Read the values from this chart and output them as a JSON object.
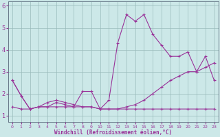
{
  "xlabel": "Windchill (Refroidissement éolien,°C)",
  "bg_color": "#cce8e8",
  "grid_color": "#99bbbb",
  "line_color": "#993399",
  "spine_color": "#667788",
  "series1": [
    2.6,
    1.9,
    1.3,
    1.4,
    1.4,
    1.6,
    1.5,
    1.4,
    2.1,
    2.1,
    1.3,
    1.7,
    4.3,
    5.6,
    5.3,
    5.6,
    4.7,
    4.2,
    3.7,
    3.7,
    3.9,
    3.0,
    3.7,
    2.6
  ],
  "series2": [
    2.6,
    1.9,
    1.3,
    1.4,
    1.6,
    1.7,
    1.6,
    1.5,
    1.4,
    1.4,
    1.3,
    1.3,
    1.3,
    1.4,
    1.5,
    1.7,
    2.0,
    2.3,
    2.6,
    2.8,
    3.0,
    3.0,
    3.2,
    3.4
  ],
  "series3": [
    1.4,
    1.3,
    1.3,
    1.4,
    1.4,
    1.4,
    1.4,
    1.4,
    1.4,
    1.4,
    1.3,
    1.3,
    1.3,
    1.3,
    1.3,
    1.3,
    1.3,
    1.3,
    1.3,
    1.3,
    1.3,
    1.3,
    1.3,
    1.3
  ],
  "x_hours": [
    0,
    1,
    2,
    3,
    4,
    5,
    6,
    7,
    8,
    9,
    10,
    11,
    12,
    13,
    14,
    15,
    16,
    17,
    18,
    19,
    20,
    21,
    22,
    23
  ],
  "ylim": [
    0.7,
    6.2
  ],
  "xlim": [
    -0.5,
    23.5
  ],
  "yticks": [
    1,
    2,
    3,
    4,
    5,
    6
  ],
  "xticks": [
    0,
    1,
    2,
    3,
    4,
    5,
    6,
    7,
    8,
    9,
    10,
    11,
    12,
    13,
    14,
    15,
    16,
    17,
    18,
    19,
    20,
    21,
    22,
    23
  ]
}
